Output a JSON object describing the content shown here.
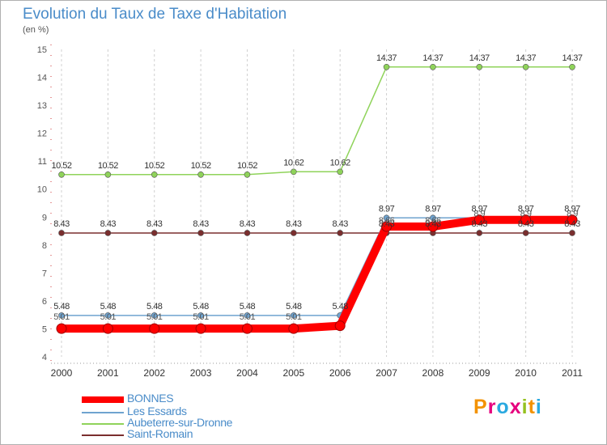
{
  "chart_data": {
    "type": "line",
    "title": "Evolution du Taux de Taxe d'Habitation",
    "subtitle": "(en %)",
    "xlabel": "",
    "ylabel": "",
    "ylim": [
      4,
      15
    ],
    "yticks": [
      "4",
      "5",
      "6",
      "7",
      "8",
      "9",
      "10",
      "11",
      "12",
      "13",
      "14",
      "15"
    ],
    "categories": [
      "2000",
      "2001",
      "2002",
      "2003",
      "2004",
      "2005",
      "2006",
      "2007",
      "2008",
      "2009",
      "2010",
      "2011"
    ],
    "grid": "vertical dashed",
    "legend_position": "bottom-left",
    "series": [
      {
        "name": "BONNES",
        "color": "#ff0000",
        "values": [
          5.01,
          5.01,
          5.01,
          5.01,
          5.01,
          5.01,
          5.11,
          8.66,
          8.66,
          8.9,
          8.9,
          8.9
        ]
      },
      {
        "name": "Les Essards",
        "color": "#6fa3cf",
        "values": [
          5.48,
          5.48,
          5.48,
          5.48,
          5.48,
          5.48,
          5.48,
          8.97,
          8.97,
          8.97,
          8.97,
          8.97
        ],
        "labels": [
          "5.48",
          "5.48",
          "5.48",
          "5.48",
          "5.48",
          "5.48",
          "5.48",
          "8.97",
          "8.97",
          "8.97",
          "8.97",
          "8.97"
        ]
      },
      {
        "name": "Aubeterre-sur-Dronne",
        "color": "#8fd35a",
        "values": [
          10.52,
          10.52,
          10.52,
          10.52,
          10.52,
          10.62,
          10.62,
          14.37,
          14.37,
          14.37,
          14.37,
          14.37
        ],
        "labels": [
          "10.52",
          "10.52",
          "10.52",
          "10.52",
          "10.52",
          "10.62",
          "10.62",
          "14.37",
          "14.37",
          "14.37",
          "14.37",
          "14.37"
        ]
      },
      {
        "name": "Saint-Romain",
        "color": "#7a2e2e",
        "values": [
          8.43,
          8.43,
          8.43,
          8.43,
          8.43,
          8.43,
          8.43,
          8.43,
          8.43,
          8.43,
          8.43,
          8.43
        ],
        "labels": [
          "8.43",
          "8.43",
          "8.43",
          "8.43",
          "8.43",
          "8.43",
          "8.43",
          "8.43",
          "8.43",
          "8.43",
          "8.43",
          "8.43"
        ]
      }
    ],
    "extra_labels": {
      "BONNES": [
        "5.01",
        "5.01",
        "5.01",
        "5.01",
        "5.01",
        "5.01",
        "",
        "8.66",
        "8.66",
        "8.9",
        "8.9",
        "8.9"
      ]
    }
  },
  "brand": {
    "letters": [
      "P",
      "r",
      "o",
      "x",
      "i",
      "t",
      "i"
    ],
    "colors": [
      "#f39200",
      "#e6007e",
      "#2aa9e0",
      "#e6007e",
      "#95c11f",
      "#f39200",
      "#2aa9e0"
    ]
  }
}
